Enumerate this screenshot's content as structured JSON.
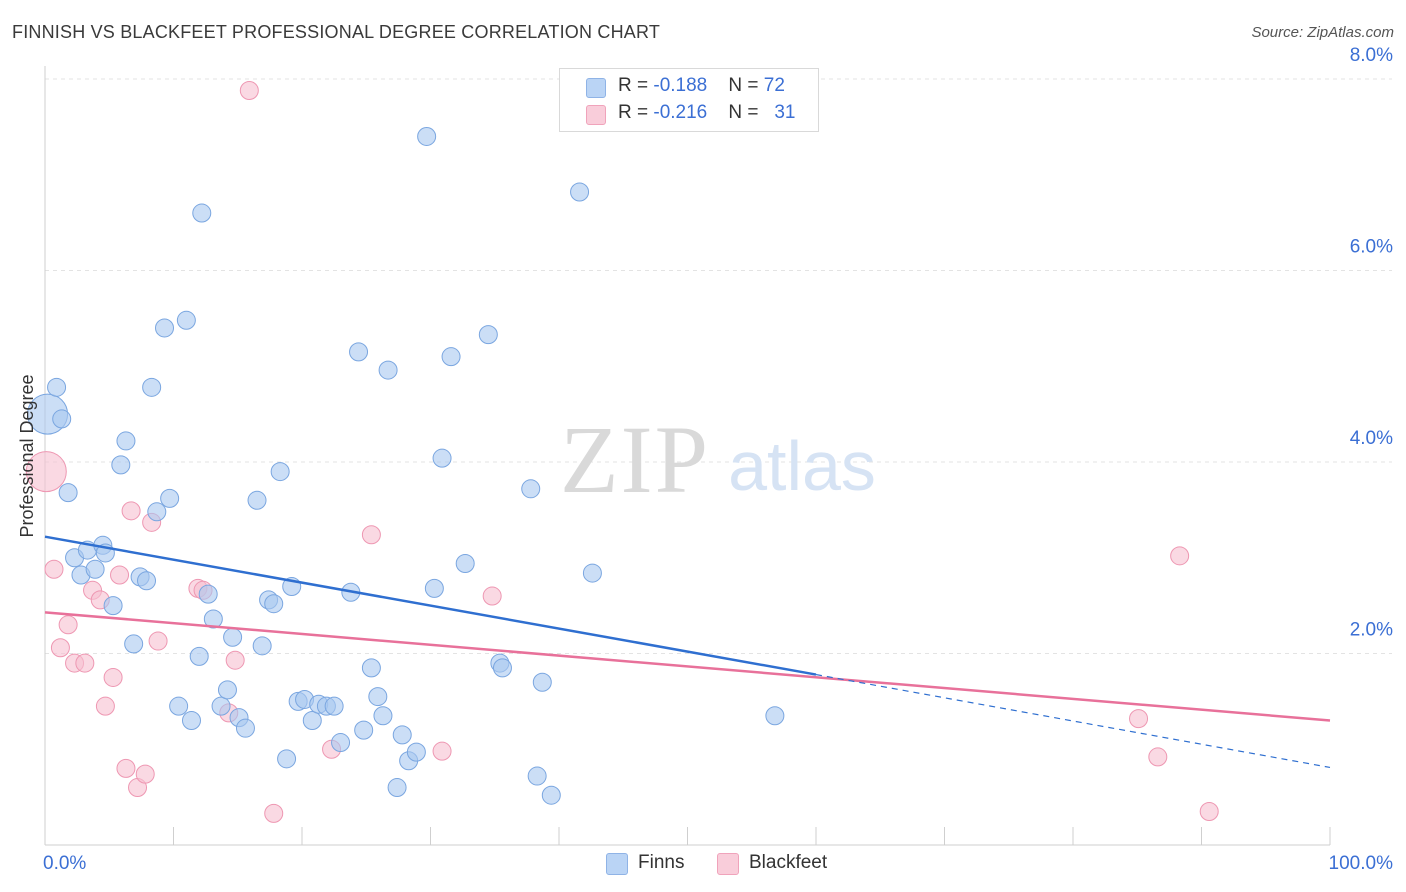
{
  "title": "FINNISH VS BLACKFEET PROFESSIONAL DEGREE CORRELATION CHART",
  "source": "Source: ZipAtlas.com",
  "watermark": {
    "zip": "ZIP",
    "atlas": "atlas"
  },
  "legend": {
    "finns": {
      "r_label": "R = ",
      "r_value": "-0.188",
      "n_label": "N = ",
      "n_value": "72"
    },
    "blackfeet": {
      "r_label": "R = ",
      "r_value": "-0.216",
      "n_label": "N = ",
      "n_value": "31"
    }
  },
  "bottom_legend": {
    "finns": "Finns",
    "blackfeet": "Blackfeet"
  },
  "colors": {
    "finns_fill": "#a9c8f0",
    "finns_stroke": "#7aa6e0",
    "finns_line": "#2f6fd0",
    "blackfeet_fill": "#f7bfd0",
    "blackfeet_stroke": "#ee97b2",
    "blackfeet_line": "#e8719a",
    "axis_label": "#3b6fd4",
    "grid": "#e3e3e3"
  },
  "chart_data": {
    "type": "scatter",
    "title": "FINNISH VS BLACKFEET PROFESSIONAL DEGREE CORRELATION CHART",
    "xlabel": "",
    "ylabel": "Professional Degree",
    "xlim": [
      0,
      100
    ],
    "ylim": [
      0,
      8.0
    ],
    "x_tick_labels": [
      "0.0%",
      "100.0%"
    ],
    "y_ticks": [
      2.0,
      4.0,
      6.0,
      8.0
    ],
    "y_tick_labels": [
      "2.0%",
      "4.0%",
      "6.0%",
      "8.0%"
    ],
    "series": [
      {
        "name": "Finns",
        "r": -0.188,
        "n": 72,
        "trend": {
          "x0": 0,
          "y0": 3.22,
          "x1": 60,
          "y1": 1.78,
          "dash_x1": 100,
          "dash_y1": 0.81
        },
        "points": [
          [
            0.2,
            4.5,
            22
          ],
          [
            0.9,
            4.78,
            11
          ],
          [
            1.3,
            4.45,
            11
          ],
          [
            1.8,
            3.68,
            11
          ],
          [
            2.3,
            3.0,
            11
          ],
          [
            2.8,
            2.82,
            11
          ],
          [
            3.3,
            3.08,
            11
          ],
          [
            3.9,
            2.88,
            11
          ],
          [
            4.5,
            3.13,
            11
          ],
          [
            4.7,
            3.05,
            11
          ],
          [
            5.3,
            2.5,
            11
          ],
          [
            5.9,
            3.97,
            11
          ],
          [
            6.3,
            4.22,
            11
          ],
          [
            6.9,
            2.1,
            11
          ],
          [
            7.4,
            2.8,
            11
          ],
          [
            7.9,
            2.76,
            11
          ],
          [
            8.3,
            4.78,
            11
          ],
          [
            8.7,
            3.48,
            11
          ],
          [
            9.3,
            5.4,
            11
          ],
          [
            9.7,
            3.62,
            11
          ],
          [
            10.4,
            1.45,
            11
          ],
          [
            11.0,
            5.48,
            11
          ],
          [
            11.4,
            1.3,
            11
          ],
          [
            12.0,
            1.97,
            11
          ],
          [
            12.2,
            6.6,
            11
          ],
          [
            12.7,
            2.62,
            11
          ],
          [
            13.1,
            2.36,
            11
          ],
          [
            13.7,
            1.45,
            11
          ],
          [
            14.2,
            1.62,
            11
          ],
          [
            14.6,
            2.17,
            11
          ],
          [
            15.1,
            1.33,
            11
          ],
          [
            15.6,
            1.22,
            11
          ],
          [
            16.5,
            3.6,
            11
          ],
          [
            16.9,
            2.08,
            11
          ],
          [
            17.4,
            2.56,
            11
          ],
          [
            17.8,
            2.52,
            11
          ],
          [
            18.3,
            3.9,
            11
          ],
          [
            18.8,
            0.9,
            11
          ],
          [
            19.2,
            2.7,
            11
          ],
          [
            19.7,
            1.5,
            11
          ],
          [
            20.2,
            1.52,
            11
          ],
          [
            20.8,
            1.3,
            11
          ],
          [
            21.3,
            1.47,
            11
          ],
          [
            21.9,
            1.45,
            11
          ],
          [
            22.5,
            1.45,
            11
          ],
          [
            23.0,
            1.07,
            11
          ],
          [
            23.8,
            2.64,
            11
          ],
          [
            24.4,
            5.15,
            11
          ],
          [
            24.8,
            1.2,
            11
          ],
          [
            25.4,
            1.85,
            11
          ],
          [
            25.9,
            1.55,
            11
          ],
          [
            26.3,
            1.35,
            11
          ],
          [
            26.7,
            4.96,
            11
          ],
          [
            27.4,
            0.6,
            11
          ],
          [
            27.8,
            1.15,
            11
          ],
          [
            28.3,
            0.88,
            11
          ],
          [
            28.9,
            0.97,
            11
          ],
          [
            29.7,
            7.4,
            11
          ],
          [
            30.3,
            2.68,
            11
          ],
          [
            30.9,
            4.04,
            11
          ],
          [
            31.6,
            5.1,
            11
          ],
          [
            32.7,
            2.94,
            11
          ],
          [
            34.5,
            5.33,
            11
          ],
          [
            35.4,
            1.9,
            11
          ],
          [
            35.6,
            1.85,
            11
          ],
          [
            37.8,
            3.72,
            11
          ],
          [
            38.3,
            0.72,
            11
          ],
          [
            38.7,
            1.7,
            11
          ],
          [
            39.4,
            0.52,
            11
          ],
          [
            41.6,
            6.82,
            11
          ],
          [
            42.6,
            2.84,
            11
          ],
          [
            56.8,
            1.35,
            11
          ]
        ]
      },
      {
        "name": "Blackfeet",
        "r": -0.216,
        "n": 31,
        "trend": {
          "x0": 0,
          "y0": 2.43,
          "x1": 100,
          "y1": 1.3
        },
        "points": [
          [
            0.1,
            3.9,
            22
          ],
          [
            0.7,
            2.88,
            11
          ],
          [
            1.2,
            2.06,
            11
          ],
          [
            1.8,
            2.3,
            11
          ],
          [
            2.3,
            1.9,
            11
          ],
          [
            3.1,
            1.9,
            11
          ],
          [
            3.7,
            2.66,
            11
          ],
          [
            4.3,
            2.56,
            11
          ],
          [
            4.7,
            1.45,
            11
          ],
          [
            5.3,
            1.75,
            11
          ],
          [
            5.8,
            2.82,
            11
          ],
          [
            6.3,
            0.8,
            11
          ],
          [
            6.7,
            3.49,
            11
          ],
          [
            7.2,
            0.6,
            11
          ],
          [
            7.8,
            0.74,
            11
          ],
          [
            8.3,
            3.37,
            11
          ],
          [
            8.8,
            2.13,
            11
          ],
          [
            11.9,
            2.68,
            11
          ],
          [
            12.3,
            2.66,
            11
          ],
          [
            14.3,
            1.38,
            11
          ],
          [
            14.8,
            1.93,
            11
          ],
          [
            15.9,
            7.88,
            11
          ],
          [
            17.8,
            0.33,
            11
          ],
          [
            22.3,
            1.0,
            11
          ],
          [
            25.4,
            3.24,
            11
          ],
          [
            30.9,
            0.98,
            11
          ],
          [
            34.8,
            2.6,
            11
          ],
          [
            85.1,
            1.32,
            11
          ],
          [
            86.6,
            0.92,
            11
          ],
          [
            88.3,
            3.02,
            11
          ],
          [
            90.6,
            0.35,
            11
          ]
        ]
      }
    ]
  }
}
